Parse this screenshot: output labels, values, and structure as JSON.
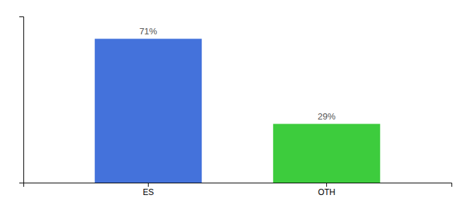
{
  "chart_data": {
    "type": "bar",
    "categories": [
      "ES",
      "OTH"
    ],
    "values": [
      71,
      29
    ],
    "value_labels": [
      "71%",
      "29%"
    ],
    "colors": [
      "#4472db",
      "#3dcc3d"
    ],
    "ylim": [
      0,
      82
    ],
    "data_labels": true,
    "tick_labels": "x"
  }
}
